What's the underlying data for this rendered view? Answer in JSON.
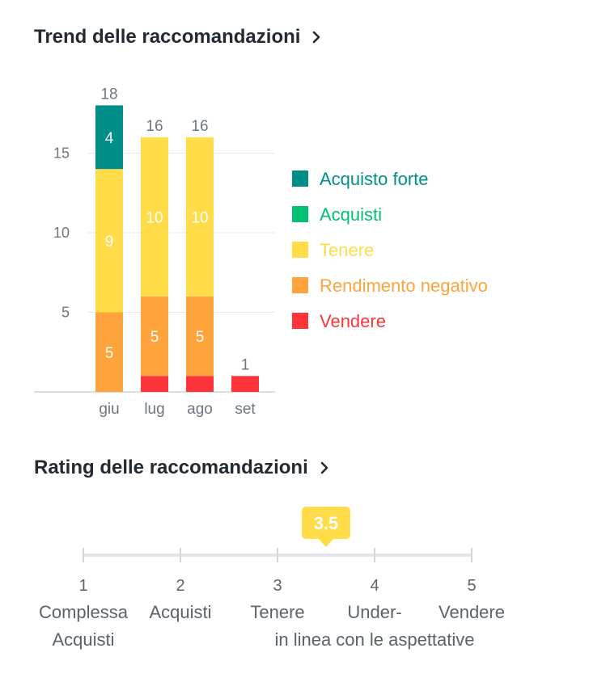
{
  "trend": {
    "title": "Trend delle raccomandazioni"
  },
  "rating": {
    "title": "Rating delle raccomandazioni"
  },
  "chart_data": [
    {
      "type": "bar",
      "stacked": true,
      "title": "Trend delle raccomandazioni",
      "categories": [
        "giu",
        "lug",
        "ago",
        "set"
      ],
      "ylim": [
        0,
        18
      ],
      "yticks": [
        5,
        10,
        15
      ],
      "grid": true,
      "legend_position": "right",
      "totals": [
        18,
        16,
        16,
        1
      ],
      "series": [
        {
          "name": "Vendere",
          "color": "#ff333a",
          "values": [
            0,
            1,
            1,
            1
          ]
        },
        {
          "name": "Rendimento negativo",
          "color": "#ffa43d",
          "values": [
            5,
            5,
            5,
            0
          ]
        },
        {
          "name": "Tenere",
          "color": "#ffdc48",
          "values": [
            9,
            10,
            10,
            0
          ]
        },
        {
          "name": "Acquisti",
          "color": "#00c073",
          "values": [
            0,
            0,
            0,
            0
          ]
        },
        {
          "name": "Acquisto forte",
          "color": "#008f88",
          "values": [
            4,
            0,
            0,
            0
          ]
        }
      ],
      "legend_order": [
        "Acquisto forte",
        "Acquisti",
        "Tenere",
        "Rendimento negativo",
        "Vendere"
      ]
    },
    {
      "type": "scale",
      "title": "Rating delle raccomandazioni",
      "value": 3.5,
      "value_label": "3.5",
      "range": [
        1,
        5
      ],
      "ticks": [
        {
          "value": 1,
          "number": "1",
          "label_lines": [
            "Complessa",
            "Acquisti"
          ]
        },
        {
          "value": 2,
          "number": "2",
          "label_lines": [
            "Acquisti"
          ]
        },
        {
          "value": 3,
          "number": "3",
          "label_lines": [
            "Tenere"
          ]
        },
        {
          "value": 4,
          "number": "4",
          "label_lines": [
            "Under-",
            "in linea con le aspettative"
          ]
        },
        {
          "value": 5,
          "number": "5",
          "label_lines": [
            "Vendere"
          ]
        }
      ],
      "marker_color": "#ffdc48"
    }
  ]
}
